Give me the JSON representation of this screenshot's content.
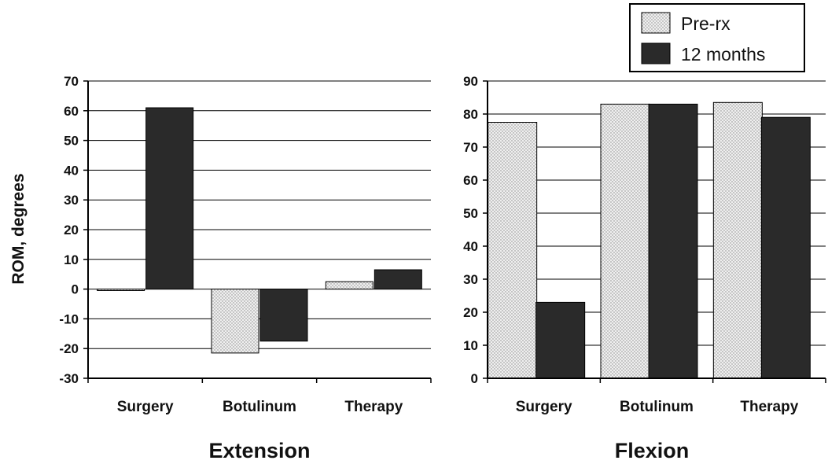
{
  "chart_data": [
    {
      "type": "bar",
      "title": "Extension",
      "ylabel": "ROM, degrees",
      "xlabel": "",
      "categories": [
        "Surgery",
        "Botulinum",
        "Therapy"
      ],
      "ylim": [
        -30,
        70
      ],
      "yticks": [
        -30,
        -20,
        -10,
        0,
        10,
        20,
        30,
        40,
        50,
        60,
        70
      ],
      "grid": true,
      "series": [
        {
          "name": "Pre-rx",
          "values": [
            -0.5,
            -21.5,
            2.5
          ]
        },
        {
          "name": "12 months",
          "values": [
            61,
            -17.5,
            6.5
          ]
        }
      ]
    },
    {
      "type": "bar",
      "title": "Flexion",
      "xlabel": "",
      "categories": [
        "Surgery",
        "Botulinum",
        "Therapy"
      ],
      "ylim": [
        0,
        90
      ],
      "yticks": [
        0,
        10,
        20,
        30,
        40,
        50,
        60,
        70,
        80,
        90
      ],
      "grid": true,
      "series": [
        {
          "name": "Pre-rx",
          "values": [
            77.5,
            83,
            83.5
          ]
        },
        {
          "name": "12 months",
          "values": [
            23,
            83,
            79
          ]
        }
      ]
    }
  ],
  "legend": {
    "placement": "top-right",
    "entries": [
      "Pre-rx",
      "12 months"
    ]
  },
  "colors": {
    "pre_rx": "#d8d8d8",
    "twelve_months": "#2a2a2a",
    "axis": "#000000",
    "grid": "#000000"
  }
}
